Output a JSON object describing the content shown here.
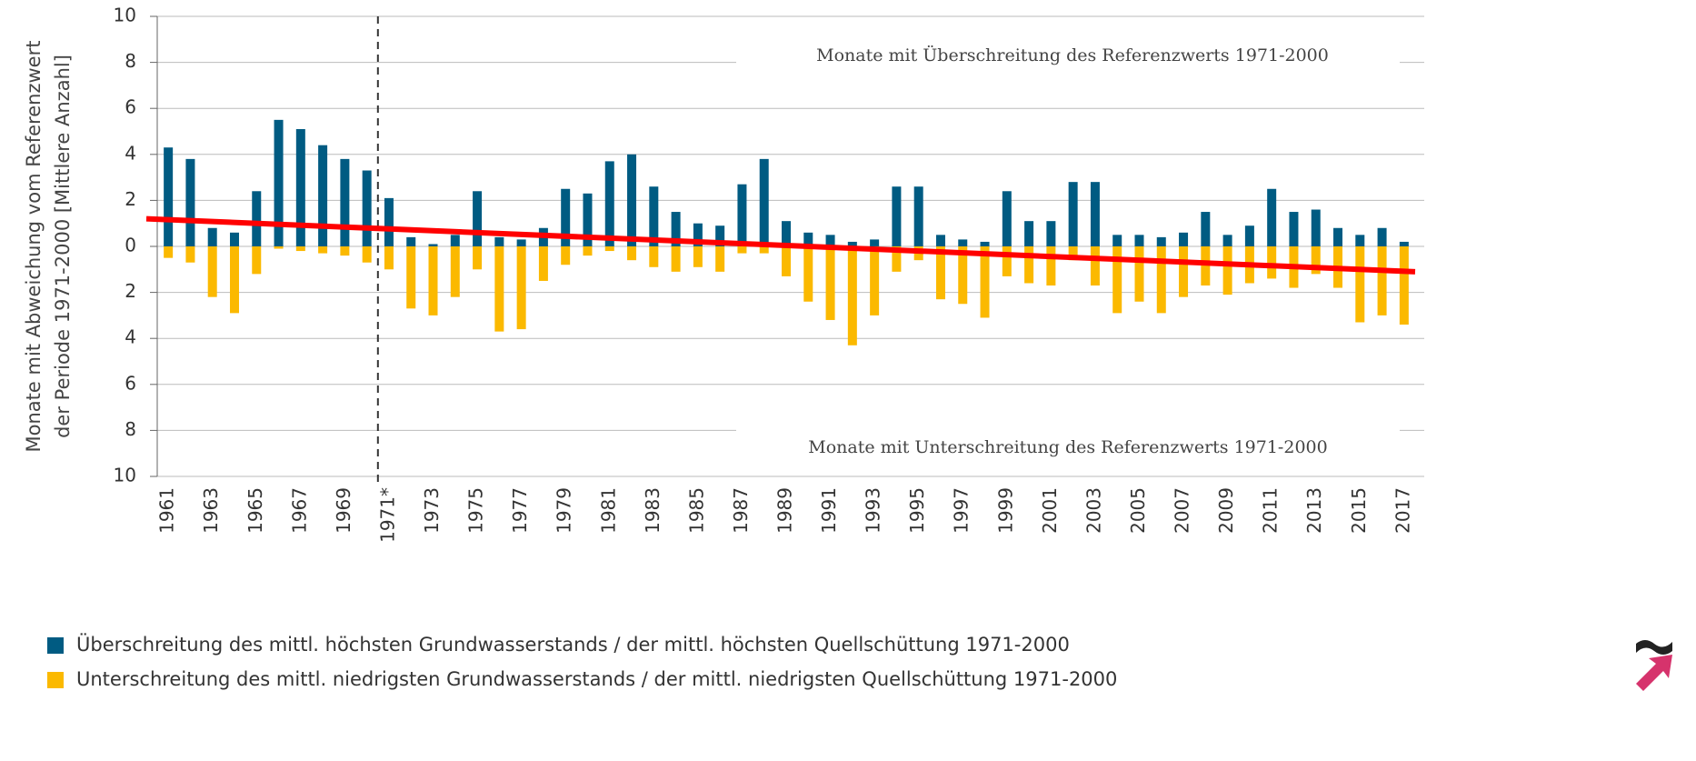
{
  "chart_data": {
    "type": "bar",
    "y_axis_label": [
      "Monate mit Abweichung vom Referenzwert",
      "der Periode 1971-2000 [Mittlere Anzahl]"
    ],
    "annotations": [
      "Monate mit Überschreitung des Referenzwerts 1971-2000",
      "Monate mit Unterschreitung des Referenzwerts 1971-2000"
    ],
    "categories": [
      "1961",
      null,
      "1963",
      null,
      "1965",
      null,
      "1967",
      null,
      "1969",
      null,
      "1971*",
      null,
      "1973",
      null,
      "1975",
      null,
      "1977",
      null,
      "1979",
      null,
      "1981",
      null,
      "1983",
      null,
      "1985",
      null,
      "1987",
      null,
      "1989",
      null,
      "1991",
      null,
      "1993",
      null,
      "1995",
      null,
      "1997",
      null,
      "1999",
      null,
      "2001",
      null,
      "2003",
      null,
      "2005",
      null,
      "2007",
      null,
      "2009",
      null,
      "2011",
      null,
      "2013",
      null,
      "2015",
      null,
      "2017"
    ],
    "series": [
      {
        "name": "Überschreitung des mittl. höchsten Grundwasserstands / der mittl. höchsten Quellschüttung 1971-2000",
        "color": "#005b82",
        "values": [
          4.3,
          3.8,
          0.8,
          0.6,
          2.4,
          5.5,
          5.1,
          4.4,
          3.8,
          3.3,
          2.1,
          0.4,
          0.1,
          0.5,
          2.4,
          0.4,
          0.3,
          0.8,
          2.5,
          2.3,
          3.7,
          4.0,
          2.6,
          1.5,
          1.0,
          0.9,
          2.7,
          3.8,
          1.1,
          0.6,
          0.5,
          0.2,
          0.3,
          2.6,
          2.6,
          0.5,
          0.3,
          0.2,
          2.4,
          1.1,
          1.1,
          2.8,
          2.8,
          0.5,
          0.5,
          0.4,
          0.6,
          1.5,
          0.5,
          0.9,
          2.5,
          1.5,
          1.6,
          0.8,
          0.5,
          0.8,
          0.2
        ]
      },
      {
        "name": "Unterschreitung des mittl. niedrigsten Grundwasserstands / der mittl. niedrigsten Quellschüttung 1971-2000",
        "color": "#fbb900",
        "values": [
          -0.5,
          -0.7,
          -2.2,
          -2.9,
          -1.2,
          -0.1,
          -0.2,
          -0.3,
          -0.4,
          -0.7,
          -1.0,
          -2.7,
          -3.0,
          -2.2,
          -1.0,
          -3.7,
          -3.6,
          -1.5,
          -0.8,
          -0.4,
          -0.2,
          -0.6,
          -0.9,
          -1.1,
          -0.9,
          -1.1,
          -0.3,
          -0.3,
          -1.3,
          -2.4,
          -3.2,
          -4.3,
          -3.0,
          -1.1,
          -0.6,
          -2.3,
          -2.5,
          -3.1,
          -1.3,
          -1.6,
          -1.7,
          -0.6,
          -1.7,
          -2.9,
          -2.4,
          -2.9,
          -2.2,
          -1.7,
          -2.1,
          -1.6,
          -1.4,
          -1.8,
          -1.2,
          -1.8,
          -3.3,
          -3.0,
          -3.4
        ]
      }
    ],
    "trend": {
      "color": "#ff0000",
      "values": [
        1.2,
        -1.1
      ]
    },
    "ylim": [
      -10,
      10
    ],
    "yticks": [
      {
        "value": -10,
        "label": "10"
      },
      {
        "value": -8,
        "label": "8"
      },
      {
        "value": -6,
        "label": "6"
      },
      {
        "value": -4,
        "label": "4"
      },
      {
        "value": -2,
        "label": "2"
      },
      0,
      2,
      4,
      6,
      8,
      10
    ],
    "grid": true
  }
}
